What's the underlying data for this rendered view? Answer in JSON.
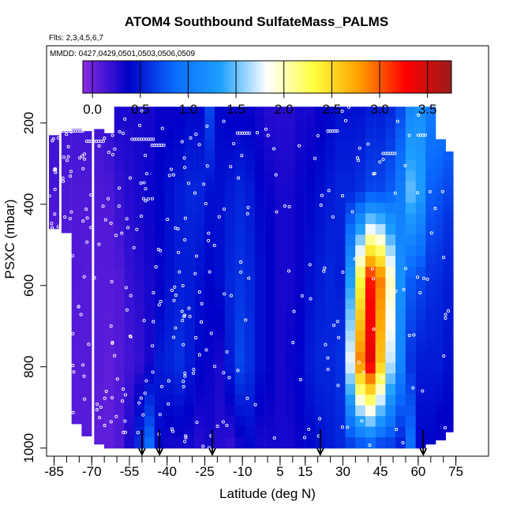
{
  "chart_data": {
    "type": "heatmap",
    "title": "ATOM4 Southbound SulfateMass_PALMS",
    "flights_note": "Flts: 2,3,4,5,6,7",
    "dates_note": "MMDD: 0427,0429,0501,0503,0506,0509",
    "xlabel": "Latitude (deg N)",
    "ylabel": "PSXC (mbar)",
    "xlim": [
      -88,
      88
    ],
    "ylim": [
      1020,
      10
    ],
    "x_ticks": [
      -85,
      -70,
      -55,
      -40,
      -25,
      -10,
      5,
      15,
      30,
      45,
      60,
      75
    ],
    "y_ticks": [
      200,
      400,
      600,
      800,
      1000
    ],
    "colorbar": {
      "range": [
        -0.1,
        3.75
      ],
      "ticks": [
        "0.0",
        "0.5",
        "1.0",
        "1.5",
        "2.0",
        "2.5",
        "3.0",
        "3.5"
      ],
      "colors": [
        "#8a2be2",
        "#0000c8",
        "#0a6cff",
        "#1ea0ff",
        "#ffffff",
        "#ffff40",
        "#ffa000",
        "#ff0000",
        "#9a1c1c"
      ]
    },
    "arrows_lat": [
      -50,
      -43,
      -22,
      21,
      62
    ],
    "columns": [
      {
        "lat": -85,
        "top": 230,
        "bottom": 460,
        "values": [
          0.15,
          0.15,
          0.1
        ]
      },
      {
        "lat": -80,
        "top": 220,
        "bottom": 470,
        "values": [
          0.15,
          0.12,
          0.1
        ]
      },
      {
        "lat": -76,
        "top": 215,
        "bottom": 940,
        "values": [
          0.15,
          0.1,
          0.1,
          0.08,
          0.08
        ]
      },
      {
        "lat": -72,
        "top": 220,
        "bottom": 970,
        "values": [
          0.15,
          0.1,
          0.08,
          0.08,
          0.08
        ]
      },
      {
        "lat": -67,
        "top": 215,
        "bottom": 990,
        "values": [
          0.15,
          0.1,
          0.08,
          0.08,
          0.05
        ]
      },
      {
        "lat": -63,
        "top": 225,
        "bottom": 1000,
        "values": [
          0.2,
          0.1,
          0.08,
          0.05,
          0.05
        ]
      },
      {
        "lat": -59,
        "top": 160,
        "bottom": 1000,
        "values": [
          0.3,
          0.2,
          0.1,
          0.1,
          0.1
        ]
      },
      {
        "lat": -55,
        "top": 160,
        "bottom": 1000,
        "values": [
          0.3,
          0.25,
          0.2,
          0.15,
          0.3
        ]
      },
      {
        "lat": -51,
        "top": 160,
        "bottom": 1000,
        "values": [
          0.3,
          0.3,
          0.25,
          0.2,
          0.6
        ]
      },
      {
        "lat": -47,
        "top": 160,
        "bottom": 1000,
        "values": [
          0.3,
          0.35,
          0.3,
          0.3,
          0.9
        ]
      },
      {
        "lat": -43,
        "top": 160,
        "bottom": 1000,
        "values": [
          0.35,
          0.4,
          0.35,
          0.5,
          0.4
        ]
      },
      {
        "lat": -39,
        "top": 160,
        "bottom": 1000,
        "values": [
          0.35,
          0.45,
          0.45,
          0.55,
          0.3
        ]
      },
      {
        "lat": -35,
        "top": 160,
        "bottom": 1000,
        "values": [
          0.35,
          0.5,
          0.5,
          0.6,
          0.3
        ]
      },
      {
        "lat": -31,
        "top": 160,
        "bottom": 1000,
        "values": [
          0.4,
          0.55,
          0.5,
          0.5,
          0.3
        ]
      },
      {
        "lat": -27,
        "top": 160,
        "bottom": 1000,
        "values": [
          0.4,
          0.55,
          0.45,
          0.4,
          0.25
        ]
      },
      {
        "lat": -23,
        "top": 160,
        "bottom": 1000,
        "values": [
          0.7,
          0.45,
          0.4,
          0.35,
          0.3
        ]
      },
      {
        "lat": -19,
        "top": 160,
        "bottom": 1000,
        "values": [
          0.4,
          0.45,
          0.45,
          0.3,
          0.25
        ]
      },
      {
        "lat": -15,
        "top": 160,
        "bottom": 1000,
        "values": [
          0.35,
          0.5,
          0.55,
          0.5,
          0.2
        ]
      },
      {
        "lat": -11,
        "top": 160,
        "bottom": 1000,
        "values": [
          0.35,
          0.55,
          0.6,
          0.7,
          0.3
        ]
      },
      {
        "lat": -7,
        "top": 160,
        "bottom": 1000,
        "values": [
          0.35,
          0.5,
          0.55,
          0.6,
          0.4
        ]
      },
      {
        "lat": -3,
        "top": 160,
        "bottom": 1000,
        "values": [
          0.3,
          0.4,
          0.45,
          0.45,
          0.3
        ]
      },
      {
        "lat": 1,
        "top": 160,
        "bottom": 1000,
        "values": [
          0.25,
          0.35,
          0.4,
          0.4,
          0.3
        ]
      },
      {
        "lat": 5,
        "top": 160,
        "bottom": 1000,
        "values": [
          0.25,
          0.3,
          0.3,
          0.3,
          0.3
        ]
      },
      {
        "lat": 9,
        "top": 160,
        "bottom": 1000,
        "values": [
          0.25,
          0.3,
          0.3,
          0.35,
          0.3
        ]
      },
      {
        "lat": 13,
        "top": 160,
        "bottom": 1000,
        "values": [
          0.3,
          0.35,
          0.35,
          0.4,
          0.35
        ]
      },
      {
        "lat": 17,
        "top": 160,
        "bottom": 1000,
        "values": [
          0.3,
          0.4,
          0.45,
          0.5,
          0.4
        ]
      },
      {
        "lat": 21,
        "top": 160,
        "bottom": 1000,
        "values": [
          0.35,
          0.45,
          0.5,
          0.55,
          0.45
        ]
      },
      {
        "lat": 25,
        "top": 160,
        "bottom": 1000,
        "values": [
          0.4,
          0.5,
          0.55,
          0.55,
          0.5
        ]
      },
      {
        "lat": 29,
        "top": 160,
        "bottom": 1000,
        "values": [
          0.45,
          0.55,
          0.5,
          0.6,
          0.55
        ]
      },
      {
        "lat": 33,
        "top": 160,
        "bottom": 1000,
        "values": [
          0.45,
          0.55,
          1.3,
          1.8,
          0.6
        ]
      },
      {
        "lat": 37,
        "top": 160,
        "bottom": 1000,
        "values": [
          0.45,
          0.6,
          2.3,
          2.9,
          0.65
        ]
      },
      {
        "lat": 41,
        "top": 160,
        "bottom": 1000,
        "values": [
          0.5,
          0.7,
          3.2,
          3.4,
          0.7
        ]
      },
      {
        "lat": 45,
        "top": 160,
        "bottom": 1000,
        "values": [
          0.5,
          0.7,
          2.9,
          2.6,
          0.6
        ]
      },
      {
        "lat": 49,
        "top": 160,
        "bottom": 1000,
        "values": [
          0.55,
          0.8,
          2.0,
          1.7,
          0.6
        ]
      },
      {
        "lat": 53,
        "top": 160,
        "bottom": 1000,
        "values": [
          0.7,
          1.0,
          1.2,
          1.1,
          0.5
        ]
      },
      {
        "lat": 57,
        "top": 160,
        "bottom": 1000,
        "values": [
          1.1,
          1.5,
          0.8,
          0.6,
          0.9
        ]
      },
      {
        "lat": 61,
        "top": 160,
        "bottom": 1000,
        "values": [
          1.2,
          1.3,
          0.7,
          0.5,
          0.4
        ]
      },
      {
        "lat": 65,
        "top": 160,
        "bottom": 990,
        "values": [
          1.0,
          0.8,
          0.6,
          0.5,
          0.4
        ]
      },
      {
        "lat": 69,
        "top": 240,
        "bottom": 980,
        "values": [
          0.9,
          0.7,
          0.55,
          0.5,
          0.35
        ]
      },
      {
        "lat": 72,
        "top": 270,
        "bottom": 960,
        "values": [
          0.8,
          0.6,
          0.5,
          0.45,
          0.35
        ]
      }
    ]
  }
}
